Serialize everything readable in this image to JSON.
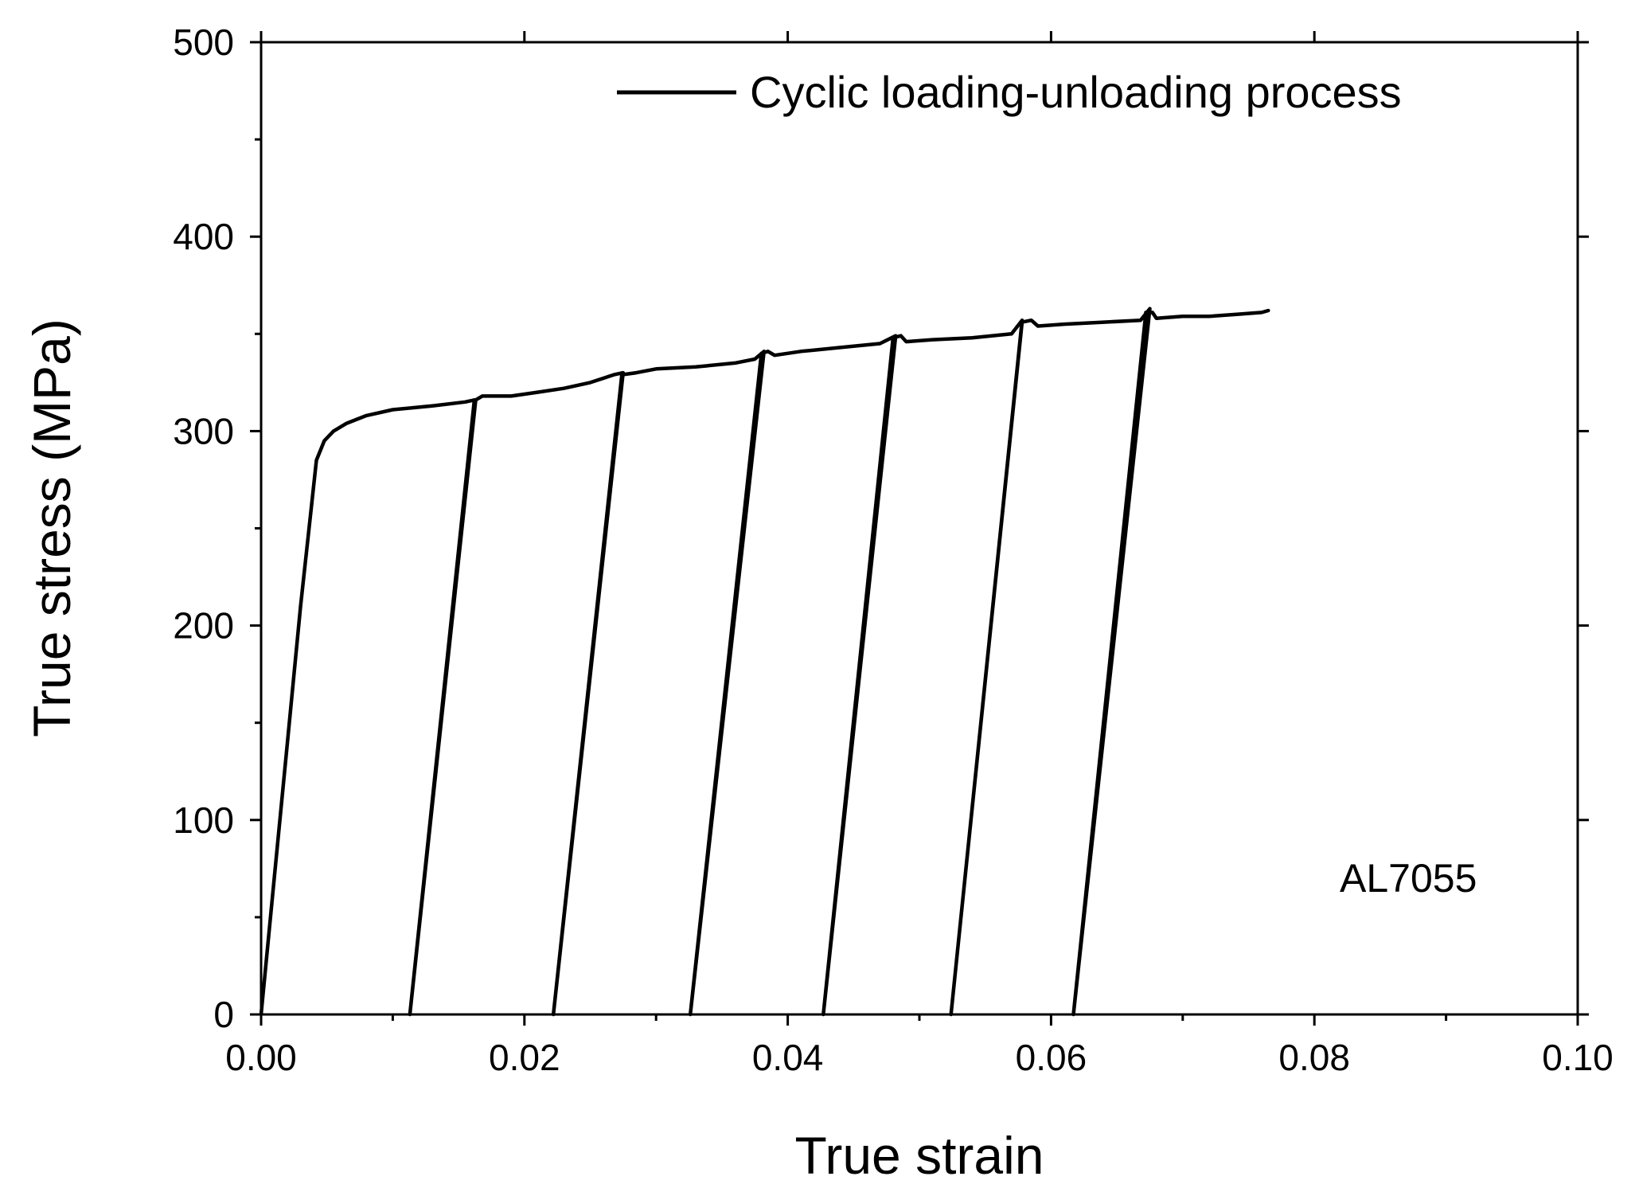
{
  "chart_data": {
    "type": "line",
    "title": "",
    "xlabel": "True strain",
    "ylabel": "True stress (MPa)",
    "xlim": [
      0,
      0.1
    ],
    "ylim": [
      0,
      500
    ],
    "x_ticks": [
      0.0,
      0.02,
      0.04,
      0.06,
      0.08,
      0.1
    ],
    "x_tick_labels": [
      "0.00",
      "0.02",
      "0.04",
      "0.06",
      "0.08",
      "0.10"
    ],
    "y_ticks": [
      0,
      100,
      200,
      300,
      400,
      500
    ],
    "y_tick_labels": [
      "0",
      "100",
      "200",
      "300",
      "400",
      "500"
    ],
    "grid": false,
    "legend_position": "top-right",
    "annotation": "AL7055",
    "series": [
      {
        "name": "Cyclic loading-unloading process",
        "color": "#000000",
        "x": [
          0.0,
          0.001,
          0.002,
          0.003,
          0.0038,
          0.0042,
          0.0048,
          0.0055,
          0.0065,
          0.008,
          0.01,
          0.013,
          0.0155,
          0.0162,
          0.0113,
          0.0163,
          0.0168,
          0.0175,
          0.019,
          0.021,
          0.023,
          0.025,
          0.0268,
          0.0275,
          0.0222,
          0.0274,
          0.0285,
          0.03,
          0.033,
          0.036,
          0.0375,
          0.0382,
          0.0326,
          0.038,
          0.0385,
          0.039,
          0.041,
          0.044,
          0.047,
          0.0482,
          0.0427,
          0.048,
          0.0486,
          0.049,
          0.051,
          0.054,
          0.057,
          0.0578,
          0.0524,
          0.0578,
          0.0585,
          0.059,
          0.061,
          0.064,
          0.0668,
          0.0675,
          0.0617,
          0.0672,
          0.0677,
          0.068,
          0.07,
          0.072,
          0.074,
          0.076,
          0.0765
        ],
        "y": [
          0,
          70,
          140,
          210,
          260,
          285,
          295,
          300,
          304,
          308,
          311,
          313,
          315,
          316,
          0,
          316,
          318,
          318,
          318,
          320,
          322,
          325,
          329,
          330,
          0,
          329,
          330,
          332,
          333,
          335,
          337,
          341,
          0,
          340,
          341,
          339,
          341,
          343,
          345,
          349,
          0,
          348,
          349,
          346,
          347,
          348,
          350,
          357,
          0,
          356,
          357,
          354,
          355,
          356,
          357,
          363,
          0,
          361,
          361,
          358,
          359,
          359,
          360,
          361,
          362
        ]
      }
    ]
  }
}
